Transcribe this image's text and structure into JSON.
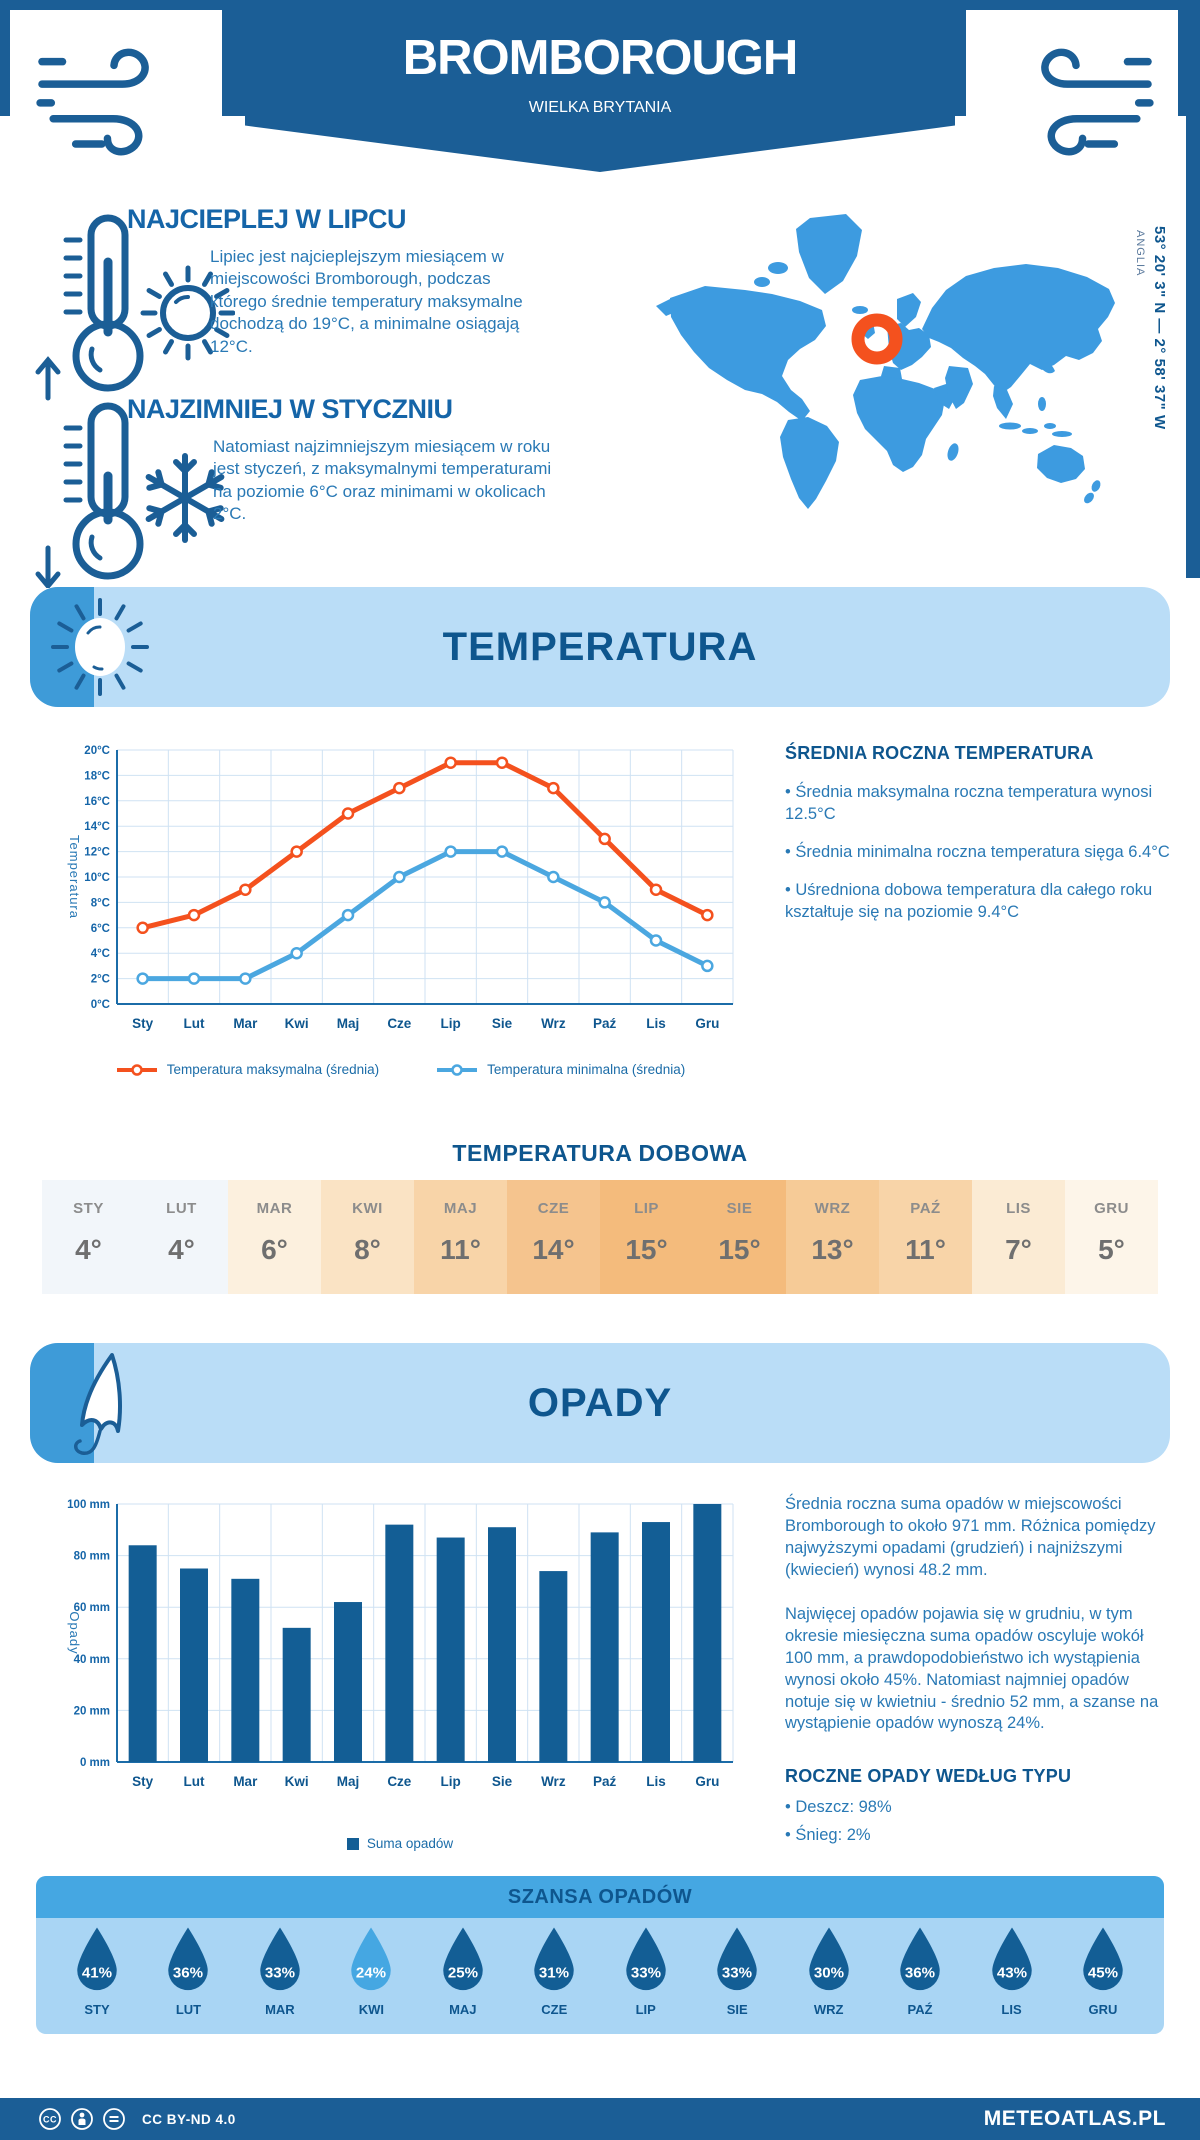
{
  "page": {
    "title": "BROMBOROUGH",
    "subtitle": "WIELKA BRYTANIA"
  },
  "intro": {
    "warmest": {
      "title": "NAJCIEPLEJ W LIPCU",
      "text": "Lipiec jest najcieplejszym miesiącem w miejscowości Bromborough, podczas którego średnie temperatury maksymalne dochodzą do 19°C, a minimalne osiągają 12°C."
    },
    "coldest": {
      "title": "NAJZIMNIEJ W STYCZNIU",
      "text": "Natomiast najzimniejszym miesiącem w roku jest styczeń, z maksymalnymi temperaturami na poziomie 6°C oraz minimami w okolicach 2°C."
    }
  },
  "map": {
    "coordinates": "53° 20' 3\" N — 2° 58' 37\" W",
    "region_label": "ANGLIA",
    "land_color": "#3D9BE0",
    "marker_color": "#F4511E"
  },
  "temperature": {
    "banner_title": "TEMPERATURA",
    "annual_title": "ŚREDNIA ROCZNA TEMPERATURA",
    "annual_bullets": [
      "Średnia maksymalna roczna temperatura wynosi 12.5°C",
      "Średnia minimalna roczna temperatura sięga 6.4°C",
      "Uśredniona dobowa temperatura dla całego roku kształtuje się na poziomie 9.4°C"
    ],
    "daily_title": "TEMPERATURA DOBOWA",
    "daily_months": [
      "STY",
      "LUT",
      "MAR",
      "KWI",
      "MAJ",
      "CZE",
      "LIP",
      "SIE",
      "WRZ",
      "PAŹ",
      "LIS",
      "GRU"
    ],
    "daily_values": [
      "4°",
      "4°",
      "6°",
      "8°",
      "11°",
      "14°",
      "15°",
      "15°",
      "13°",
      "11°",
      "7°",
      "5°"
    ],
    "daily_cell_colors": [
      "#F2F6FA",
      "#F2F6FA",
      "#FCF0DE",
      "#FAE3C4",
      "#F8D4A8",
      "#F5C48E",
      "#F4BB7C",
      "#F4BB7C",
      "#F6CB97",
      "#F8D4A8",
      "#FBEBD4",
      "#FDF5E9"
    ]
  },
  "precipitation": {
    "banner_title": "OPADY",
    "paragraph1": "Średnia roczna suma opadów w miejscowości Bromborough to około 971 mm. Różnica pomiędzy najwyższymi opadami (grudzień) i najniższymi (kwiecień) wynosi 48.2 mm.",
    "paragraph2": "Najwięcej opadów pojawia się w grudniu, w tym okresie miesięczna suma opadów oscyluje wokół 100 mm, a prawdopodobieństwo ich wystąpienia wynosi około 45%. Natomiast najmniej opadów notuje się w kwietniu - średnio 52 mm, a szanse na wystąpienie opadów wynoszą 24%.",
    "by_type_title": "ROCZNE OPADY WEDŁUG TYPU",
    "by_type_bullets": [
      "Deszcz: 98%",
      "Śnieg: 2%"
    ],
    "chance_title": "SZANSA OPADÓW",
    "chance_months": [
      "STY",
      "LUT",
      "MAR",
      "KWI",
      "MAJ",
      "CZE",
      "LIP",
      "SIE",
      "WRZ",
      "PAŹ",
      "LIS",
      "GRU"
    ],
    "chance_values": [
      "41%",
      "36%",
      "33%",
      "24%",
      "25%",
      "31%",
      "33%",
      "33%",
      "30%",
      "36%",
      "43%",
      "45%"
    ],
    "chance_highlight_index": 3
  },
  "footer": {
    "license": "CC BY-ND 4.0",
    "brand": "METEOATLAS.PL"
  },
  "colors": {
    "primary": "#1B5E96",
    "heading": "#0E568E",
    "body_text": "#2979B5",
    "grid": "#CFE2F3",
    "axis": "#1B6CA8",
    "tick_text": "#1565A8",
    "bar": "#135E95",
    "droplet": "#135E95",
    "droplet_highlight": "#45A7E2",
    "table_month_text": "#8C8C8C",
    "table_value_text": "#6F6F6F"
  },
  "chart_data": [
    {
      "type": "line",
      "title": "Temperatura",
      "x": [
        "Sty",
        "Lut",
        "Mar",
        "Kwi",
        "Maj",
        "Cze",
        "Lip",
        "Sie",
        "Wrz",
        "Paź",
        "Lis",
        "Gru"
      ],
      "series": [
        {
          "name": "Temperatura maksymalna (średnia)",
          "color": "#F4511E",
          "values": [
            6,
            7,
            9,
            12,
            15,
            17,
            19,
            19,
            17,
            13,
            9,
            7
          ]
        },
        {
          "name": "Temperatura minimalna (średnia)",
          "color": "#4BA7E0",
          "values": [
            2,
            2,
            2,
            4,
            7,
            10,
            12,
            12,
            10,
            8,
            5,
            3
          ]
        }
      ],
      "ylabel": "Temperatura",
      "ylim": [
        0,
        20
      ],
      "ytick_step": 2,
      "ytick_suffix": "°C",
      "grid": true,
      "legend_position": "bottom"
    },
    {
      "type": "bar",
      "title": "Opady",
      "categories": [
        "Sty",
        "Lut",
        "Mar",
        "Kwi",
        "Maj",
        "Cze",
        "Lip",
        "Sie",
        "Wrz",
        "Paź",
        "Lis",
        "Gru"
      ],
      "values": [
        84,
        75,
        71,
        52,
        62,
        92,
        87,
        91,
        74,
        89,
        93,
        100
      ],
      "series_name": "Suma opadów",
      "ylabel": "Opady",
      "ylim": [
        0,
        100
      ],
      "ytick_step": 20,
      "ytick_suffix": " mm",
      "grid": true,
      "legend_position": "bottom"
    }
  ]
}
